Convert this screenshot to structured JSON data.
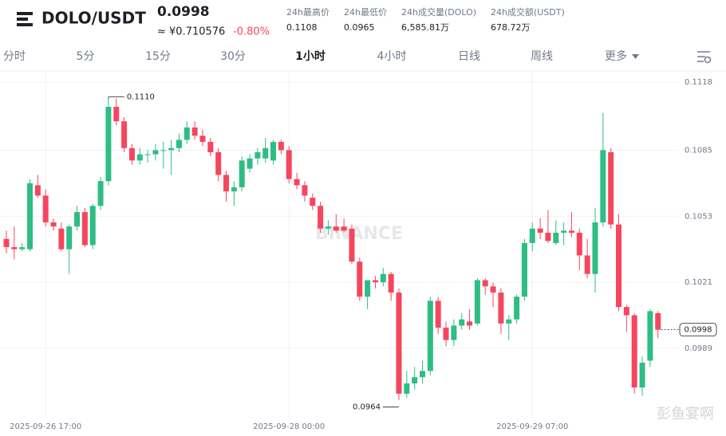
{
  "header": {
    "pair": "DOLO/USDT",
    "price": "0.0998",
    "cny": "≈ ¥0.710576",
    "change": "-0.80%",
    "stats": [
      {
        "label": "24h最高价",
        "value": "0.1108"
      },
      {
        "label": "24h最低价",
        "value": "0.0965"
      },
      {
        "label": "24h成交量(DOLO)",
        "value": "6,585.81万"
      },
      {
        "label": "24h成交额(USDT)",
        "value": "678.72万"
      }
    ]
  },
  "tabs": [
    "分时",
    "5分",
    "15分",
    "30分",
    "1小时",
    "4小时",
    "日线",
    "周线",
    "更多"
  ],
  "active_tab": "1小时",
  "watermarks": [
    "BINANCE",
    "彭鱼宴啊"
  ],
  "chart_data": {
    "type": "candlestick",
    "categories": [
      null,
      null,
      null,
      null,
      null,
      "2025-09-26 17:00",
      null,
      null,
      null,
      null,
      null,
      null,
      null,
      null,
      null,
      null,
      null,
      null,
      null,
      null,
      null,
      null,
      null,
      null,
      null,
      null,
      null,
      null,
      null,
      null,
      null,
      null,
      null,
      null,
      null,
      null,
      "2025-09-28 00:00",
      null,
      null,
      null,
      null,
      null,
      null,
      null,
      null,
      null,
      null,
      null,
      null,
      null,
      null,
      null,
      null,
      null,
      null,
      null,
      null,
      null,
      null,
      null,
      null,
      null,
      null,
      null,
      null,
      null,
      null,
      "2025-09-29 07:00",
      null,
      null,
      null,
      null,
      null,
      null,
      null,
      null,
      null,
      null,
      null,
      null,
      null,
      null,
      null,
      null
    ],
    "open": [
      0.1042,
      0.1038,
      0.1037,
      0.1037,
      0.1068,
      0.1063,
      0.105,
      0.1047,
      0.1037,
      0.1048,
      0.1055,
      0.1039,
      0.1058,
      0.107,
      0.1106,
      0.1099,
      0.1086,
      0.108,
      0.1083,
      0.1083,
      0.1085,
      0.1085,
      0.1086,
      0.109,
      0.1096,
      0.1092,
      0.1089,
      0.1084,
      0.1073,
      0.1065,
      0.1067,
      0.1076,
      0.1081,
      0.1081,
      0.108,
      0.1089,
      0.1085,
      0.1071,
      0.1068,
      0.1062,
      0.1058,
      0.1047,
      0.1048,
      0.1048,
      0.1047,
      0.1031,
      0.1014,
      0.1022,
      0.1021,
      0.1025,
      0.1016,
      0.0967,
      0.0972,
      0.0975,
      0.0978,
      0.1012,
      0.0999,
      0.0993,
      0.1,
      0.1002,
      0.1001,
      0.1022,
      0.1019,
      0.1016,
      0.1001,
      0.1003,
      0.1014,
      0.104,
      0.1047,
      0.1045,
      0.104,
      0.1045,
      0.1046,
      0.1045,
      0.1034,
      0.1025,
      0.105,
      0.1084,
      0.1049,
      0.1009,
      0.1005,
      0.097,
      0.0983,
      0.1006
    ],
    "high": [
      0.1046,
      0.1048,
      0.104,
      0.1071,
      0.1073,
      0.1066,
      0.1052,
      0.105,
      0.1049,
      0.1058,
      0.1057,
      0.1059,
      0.1072,
      0.111,
      0.111,
      0.1101,
      0.1088,
      0.1086,
      0.1085,
      0.1088,
      0.1089,
      0.109,
      0.1093,
      0.1099,
      0.1099,
      0.1095,
      0.1091,
      0.1086,
      0.1075,
      0.107,
      0.1082,
      0.1083,
      0.1086,
      0.1091,
      0.109,
      0.109,
      0.1087,
      0.1074,
      0.107,
      0.1064,
      0.106,
      0.1051,
      0.1054,
      0.1052,
      0.1049,
      0.1033,
      0.1022,
      0.1024,
      0.1028,
      0.1026,
      0.1018,
      0.0978,
      0.098,
      0.0983,
      0.1014,
      0.1014,
      0.1002,
      0.1003,
      0.1006,
      0.1008,
      0.1023,
      0.1023,
      0.1021,
      0.1018,
      0.1005,
      0.1015,
      0.1042,
      0.105,
      0.1052,
      0.1056,
      0.1051,
      0.105,
      0.1055,
      0.1047,
      0.1042,
      0.1057,
      0.1103,
      0.1086,
      0.1054,
      0.101,
      0.1006,
      0.0985,
      0.1008,
      0.1007
    ],
    "low": [
      0.1035,
      0.1032,
      0.1036,
      0.1036,
      0.1062,
      0.1048,
      0.1046,
      0.1036,
      0.1025,
      0.1046,
      0.1038,
      0.1037,
      0.1056,
      0.1068,
      0.1097,
      0.1084,
      0.1078,
      0.1078,
      0.1079,
      0.108,
      0.1076,
      0.1073,
      0.1084,
      0.1088,
      0.109,
      0.1087,
      0.1082,
      0.107,
      0.106,
      0.1058,
      0.1065,
      0.1074,
      0.1078,
      0.1079,
      0.1078,
      0.1083,
      0.1069,
      0.1066,
      0.106,
      0.1056,
      0.1045,
      0.1044,
      0.1045,
      0.1045,
      0.103,
      0.1012,
      0.1008,
      0.1018,
      0.1019,
      0.1012,
      0.0964,
      0.0965,
      0.0969,
      0.0972,
      0.0976,
      0.0996,
      0.099,
      0.099,
      0.0998,
      0.0998,
      0.1,
      0.1015,
      0.1009,
      0.0996,
      0.0993,
      0.1001,
      0.1012,
      0.1036,
      0.1042,
      0.104,
      0.1039,
      0.1039,
      0.1043,
      0.1027,
      0.1023,
      0.1016,
      0.1048,
      0.1047,
      0.1007,
      0.0997,
      0.0967,
      0.0966,
      0.098,
      0.0994
    ],
    "close": [
      0.1038,
      0.1037,
      0.1038,
      0.1069,
      0.1063,
      0.105,
      0.1048,
      0.1037,
      0.1048,
      0.1055,
      0.1039,
      0.1058,
      0.107,
      0.1106,
      0.1099,
      0.1086,
      0.108,
      0.1083,
      0.1083,
      0.1085,
      0.1085,
      0.1086,
      0.109,
      0.1096,
      0.1092,
      0.1089,
      0.1084,
      0.1073,
      0.1065,
      0.1067,
      0.108,
      0.1081,
      0.1084,
      0.1086,
      0.1089,
      0.1085,
      0.1071,
      0.1068,
      0.1063,
      0.1058,
      0.1047,
      0.1048,
      0.1046,
      0.1046,
      0.1031,
      0.1014,
      0.1022,
      0.1021,
      0.1025,
      0.1016,
      0.0967,
      0.0972,
      0.0975,
      0.0978,
      0.1012,
      0.0999,
      0.0993,
      0.1,
      0.1003,
      0.1,
      0.1022,
      0.1019,
      0.1016,
      0.1001,
      0.1003,
      0.1014,
      0.104,
      0.1047,
      0.1045,
      0.1041,
      0.1045,
      0.1046,
      0.1045,
      0.1034,
      0.1025,
      0.105,
      0.1085,
      0.1049,
      0.1009,
      0.1005,
      0.097,
      0.0982,
      0.1007,
      0.0998
    ],
    "up_color": "#2ebd85",
    "down_color": "#f6465d",
    "ylim": [
      0.0955,
      0.1123
    ],
    "yticks": [
      0.1118,
      0.1085,
      0.1053,
      0.1021,
      0.0989
    ],
    "grid": true,
    "max_label": "0.1110",
    "min_label": "0.0964",
    "last_price_label": "0.0998"
  }
}
